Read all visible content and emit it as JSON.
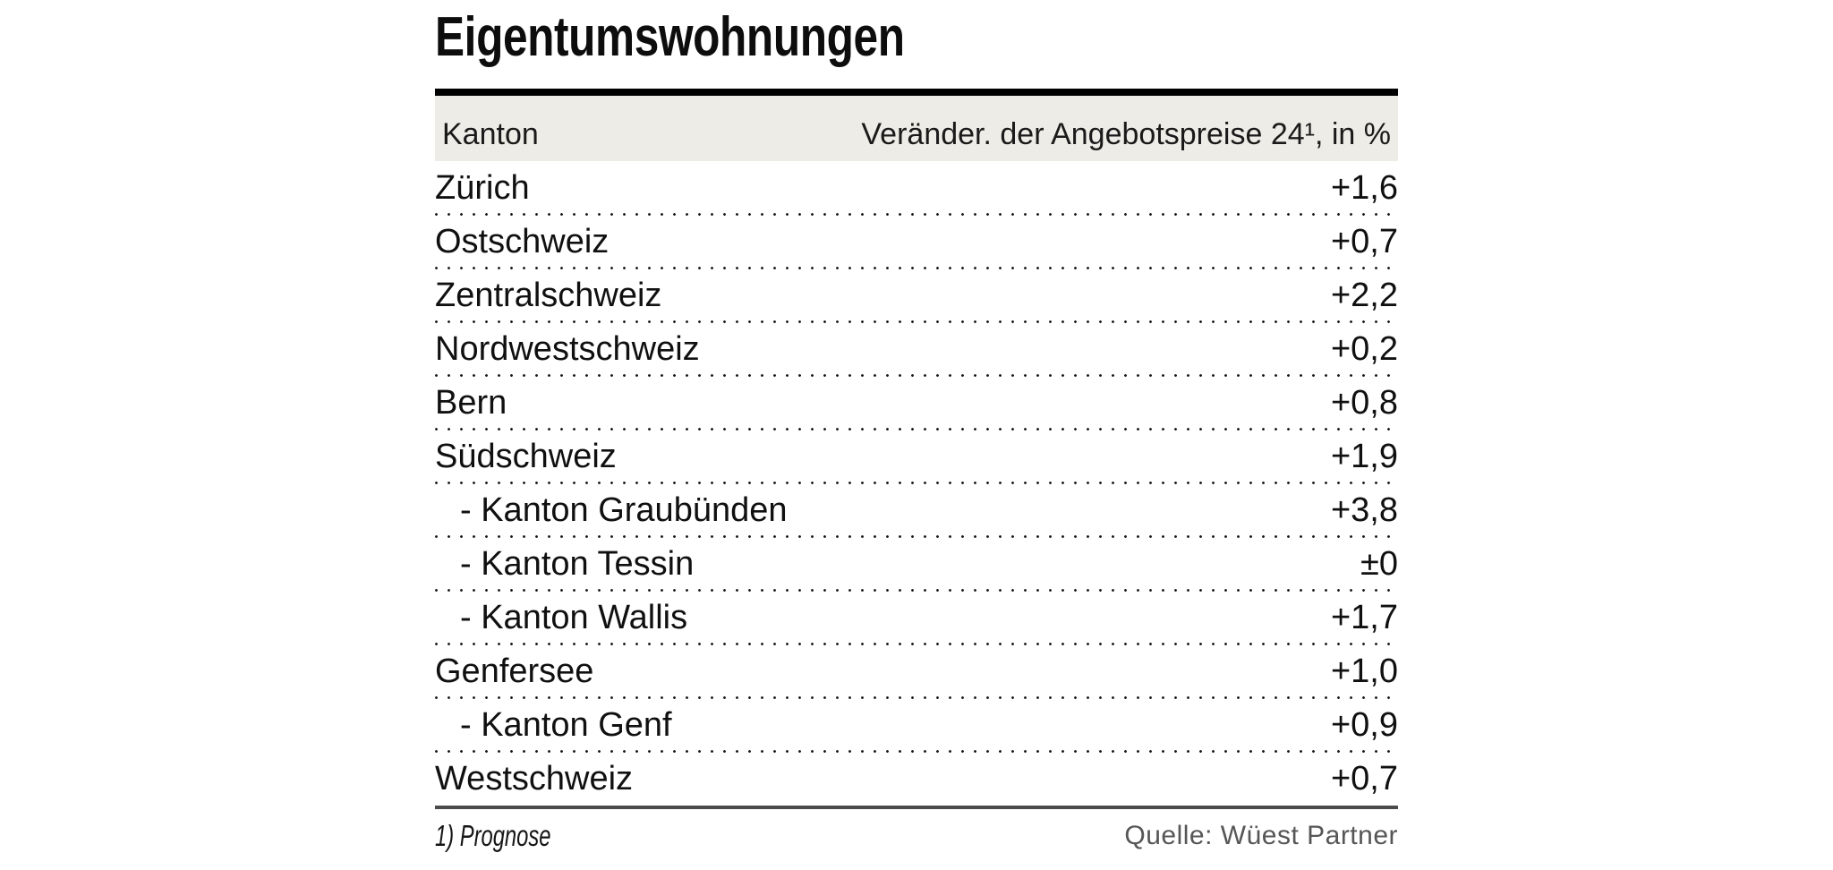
{
  "title": "Eigentumswohnungen",
  "table": {
    "columns": {
      "kanton": "Kanton",
      "change": "Veränder. der Angebotspreise 24¹, in %"
    },
    "rows": [
      {
        "label": "Zürich",
        "value": "+1,6",
        "indent": false
      },
      {
        "label": "Ostschweiz",
        "value": "+0,7",
        "indent": false
      },
      {
        "label": "Zentralschweiz",
        "value": "+2,2",
        "indent": false
      },
      {
        "label": "Nordwestschweiz",
        "value": "+0,2",
        "indent": false
      },
      {
        "label": "Bern",
        "value": "+0,8",
        "indent": false
      },
      {
        "label": "Südschweiz",
        "value": "+1,9",
        "indent": false
      },
      {
        "label": "- Kanton Graubünden",
        "value": "+3,8",
        "indent": true
      },
      {
        "label": "- Kanton Tessin",
        "value": "±0",
        "indent": true
      },
      {
        "label": "- Kanton Wallis",
        "value": "+1,7",
        "indent": true
      },
      {
        "label": "Genfersee",
        "value": "+1,0",
        "indent": false
      },
      {
        "label": "- Kanton Genf",
        "value": "+0,9",
        "indent": true
      },
      {
        "label": "Westschweiz",
        "value": "+0,7",
        "indent": false
      }
    ]
  },
  "footer": {
    "footnote": "1) Prognose",
    "source": "Quelle: Wüest Partner"
  },
  "colors": {
    "header_bg": "#eeece6",
    "text": "#111111",
    "dot_separator": "#1b1b1b",
    "bottom_rule": "#4b4b4b",
    "source_text": "#565656",
    "top_rule": "#000000"
  },
  "chart_data": {
    "type": "table",
    "title": "Eigentumswohnungen",
    "columns": [
      "Kanton",
      "Veränder. der Angebotspreise 24¹, in %"
    ],
    "unit": "%",
    "rows": [
      {
        "region": "Zürich",
        "change_pct": 1.6,
        "is_sub_row": false
      },
      {
        "region": "Ostschweiz",
        "change_pct": 0.7,
        "is_sub_row": false
      },
      {
        "region": "Zentralschweiz",
        "change_pct": 2.2,
        "is_sub_row": false
      },
      {
        "region": "Nordwestschweiz",
        "change_pct": 0.2,
        "is_sub_row": false
      },
      {
        "region": "Bern",
        "change_pct": 0.8,
        "is_sub_row": false
      },
      {
        "region": "Südschweiz",
        "change_pct": 1.9,
        "is_sub_row": false
      },
      {
        "region": "Kanton Graubünden",
        "change_pct": 3.8,
        "is_sub_row": true
      },
      {
        "region": "Kanton Tessin",
        "change_pct": 0.0,
        "is_sub_row": true
      },
      {
        "region": "Kanton Wallis",
        "change_pct": 1.7,
        "is_sub_row": true
      },
      {
        "region": "Genfersee",
        "change_pct": 1.0,
        "is_sub_row": false
      },
      {
        "region": "Kanton Genf",
        "change_pct": 0.9,
        "is_sub_row": true
      },
      {
        "region": "Westschweiz",
        "change_pct": 0.7,
        "is_sub_row": false
      }
    ],
    "footnote": "1) Prognose",
    "source": "Quelle: Wüest Partner"
  }
}
